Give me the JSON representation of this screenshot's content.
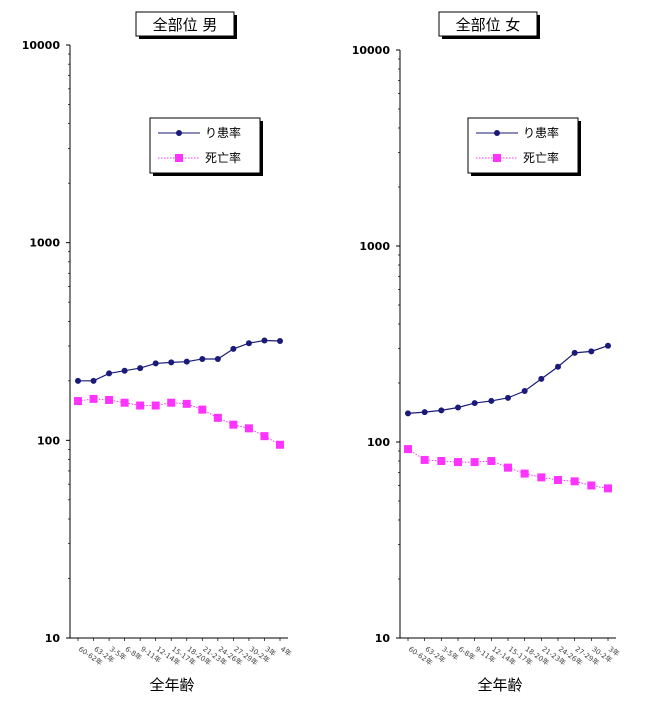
{
  "chart_data": [
    {
      "type": "line",
      "title": "全部位 男",
      "xlabel": "全年齢",
      "ylabel": "",
      "yscale": "log",
      "ylim": [
        10,
        10000
      ],
      "yticks": [
        "10",
        "100",
        "1000",
        "10000"
      ],
      "legend_position": "top-right",
      "categories": [
        "60-62年",
        "63-2年",
        "3-5年",
        "6-8年",
        "9-11年",
        "12-14年",
        "15-17年",
        "18-20年",
        "21-23年",
        "24-26年",
        "27-29年",
        "30-2年",
        "3年",
        "4年"
      ],
      "series": [
        {
          "name": "り患率",
          "color": "#1a1a7a",
          "marker": "circle",
          "style": "solid",
          "values": [
            200,
            200,
            218,
            225,
            232,
            245,
            248,
            250,
            258,
            258,
            290,
            310,
            320,
            318
          ]
        },
        {
          "name": "死亡率",
          "color": "#ff33ff",
          "marker": "square",
          "style": "dotted",
          "values": [
            158,
            162,
            160,
            155,
            150,
            150,
            155,
            153,
            143,
            130,
            120,
            115,
            105,
            95
          ]
        }
      ]
    },
    {
      "type": "line",
      "title": "全部位 女",
      "xlabel": "全年齢",
      "ylabel": "",
      "yscale": "log",
      "ylim": [
        10,
        10000
      ],
      "yticks": [
        "10",
        "100",
        "1000",
        "10000"
      ],
      "legend_position": "top-right",
      "categories": [
        "60-62年",
        "63-2年",
        "3-5年",
        "6-8年",
        "9-11年",
        "12-14年",
        "15-17年",
        "18-20年",
        "21-23年",
        "24-26年",
        "27-29年",
        "30-2年",
        "3年"
      ],
      "series": [
        {
          "name": "り患率",
          "color": "#1a1a7a",
          "marker": "circle",
          "style": "solid",
          "values": [
            140,
            142,
            145,
            150,
            158,
            162,
            168,
            182,
            210,
            242,
            285,
            290,
            310
          ]
        },
        {
          "name": "死亡率",
          "color": "#ff33ff",
          "marker": "square",
          "style": "dotted",
          "values": [
            92,
            81,
            80,
            79,
            79,
            80,
            74,
            69,
            66,
            64,
            63,
            60,
            58
          ]
        }
      ]
    }
  ]
}
